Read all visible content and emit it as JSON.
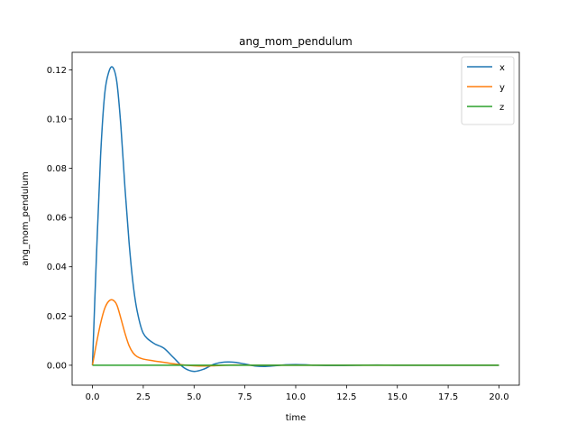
{
  "chart_data": {
    "type": "line",
    "title": "ang_mom_pendulum",
    "xlabel": "time",
    "ylabel": "ang_mom_pendulum",
    "xlim": [
      -1.0,
      21.0
    ],
    "ylim": [
      -0.0081,
      0.1271
    ],
    "xticks": [
      0.0,
      2.5,
      5.0,
      7.5,
      10.0,
      12.5,
      15.0,
      17.5,
      20.0
    ],
    "xtick_labels": [
      "0.0",
      "2.5",
      "5.0",
      "7.5",
      "10.0",
      "12.5",
      "15.0",
      "17.5",
      "20.0"
    ],
    "yticks": [
      0.0,
      0.02,
      0.04,
      0.06,
      0.08,
      0.1,
      0.12
    ],
    "ytick_labels": [
      "0.00",
      "0.02",
      "0.04",
      "0.06",
      "0.08",
      "0.10",
      "0.12"
    ],
    "grid": false,
    "legend_position": "top-right",
    "series": [
      {
        "name": "x",
        "color": "#1f77b4",
        "x": [
          0,
          0.2,
          0.4,
          0.6,
          0.8,
          1.0,
          1.2,
          1.4,
          1.6,
          1.8,
          2.0,
          2.2,
          2.5,
          3.0,
          3.5,
          4.0,
          4.5,
          5.0,
          5.5,
          6.0,
          6.5,
          7.0,
          7.5,
          8.0,
          8.5,
          9.0,
          9.5,
          10.0,
          10.5,
          11.0,
          12.0,
          13.0,
          14.0,
          15.0,
          16.0,
          17.0,
          18.0,
          19.0,
          20.0
        ],
        "y": [
          0.0,
          0.045,
          0.085,
          0.11,
          0.119,
          0.121,
          0.115,
          0.097,
          0.072,
          0.05,
          0.033,
          0.022,
          0.013,
          0.009,
          0.007,
          0.003,
          -0.001,
          -0.0025,
          -0.0015,
          0.0005,
          0.0013,
          0.0012,
          0.0005,
          -0.0003,
          -0.0005,
          -0.0002,
          0.0002,
          0.0003,
          0.0002,
          0.0,
          -0.0001,
          0.0,
          0.0001,
          0.0,
          0.0,
          0.0,
          0.0,
          0.0,
          0.0
        ]
      },
      {
        "name": "y",
        "color": "#ff7f0e",
        "x": [
          0,
          0.2,
          0.4,
          0.6,
          0.8,
          1.0,
          1.2,
          1.4,
          1.6,
          1.8,
          2.0,
          2.2,
          2.5,
          3.0,
          3.5,
          4.0,
          4.5,
          5.0,
          5.5,
          6.0,
          7.0,
          8.0,
          9.0,
          10.0,
          11.0,
          12.0,
          14.0,
          16.0,
          18.0,
          20.0
        ],
        "y": [
          0.0,
          0.009,
          0.017,
          0.023,
          0.026,
          0.0265,
          0.0245,
          0.019,
          0.013,
          0.008,
          0.005,
          0.0035,
          0.0025,
          0.0018,
          0.0012,
          0.0006,
          0.0001,
          -0.0002,
          -0.0003,
          -0.0002,
          0.0001,
          0.0,
          0.0,
          0.0,
          0.0,
          0.0,
          0.0,
          0.0,
          0.0,
          0.0
        ]
      },
      {
        "name": "z",
        "color": "#2ca02c",
        "x": [
          0,
          20
        ],
        "y": [
          0.0,
          0.0
        ]
      }
    ]
  }
}
